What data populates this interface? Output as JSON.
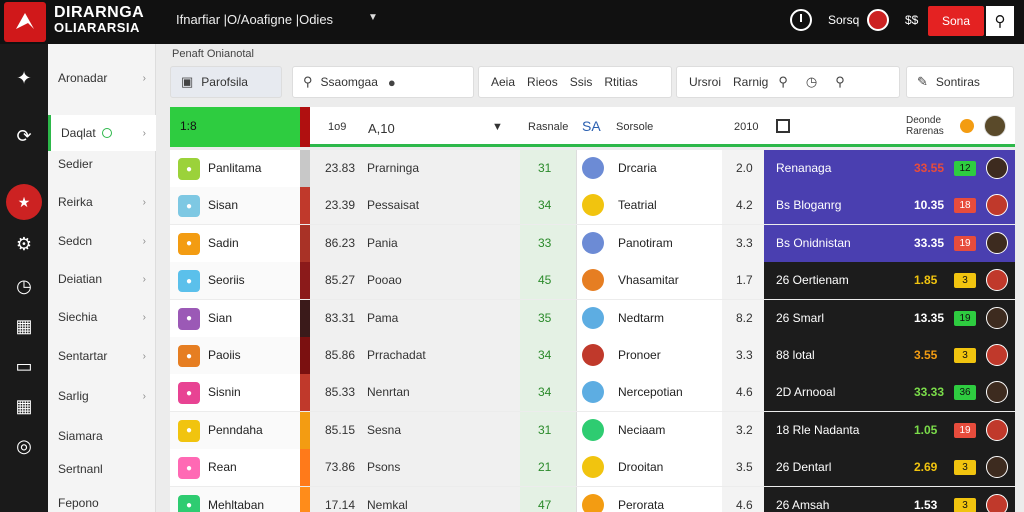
{
  "app": {
    "brand_line1": "DIRARNGA",
    "brand_line2": "OLIARARSIA",
    "nav_title": "Ifnarfiar |O/Aoafigne |Odies",
    "clock_label": "Sorsq",
    "money_label": "$$",
    "cta_label": "Sona"
  },
  "sidebar": {
    "items": [
      {
        "label": "Aronadar",
        "arrow": "›"
      },
      {
        "label": "Daqlat",
        "arrow": "›"
      },
      {
        "label": "Sedier",
        "arrow": ""
      },
      {
        "label": "Reirka",
        "arrow": "›"
      },
      {
        "label": "Sedcn",
        "arrow": "›"
      },
      {
        "label": "Deiatian",
        "arrow": "›"
      },
      {
        "label": "Siechia",
        "arrow": "›"
      },
      {
        "label": "Sentartar",
        "arrow": "›"
      },
      {
        "label": "Sarlig",
        "arrow": "›"
      },
      {
        "label": "Siamara",
        "arrow": ""
      },
      {
        "label": "Sertnanl",
        "arrow": ""
      },
      {
        "label": "Fepono",
        "arrow": ""
      }
    ]
  },
  "breadcrumb": "Penaft Onianotal",
  "toolbar": {
    "t1": "Parofsila",
    "search_value": "Ssaomgaa",
    "t3a": "Aeia",
    "t3b": "Rieos",
    "t3c": "Ssis",
    "t3d": "Rtitias",
    "t4a": "Ursroi",
    "t4b": "Rarnig",
    "t5": "Sontiras"
  },
  "header": {
    "green": "1:8",
    "c1": "1o9",
    "c2": "A,10",
    "c3": "Rasnale",
    "c4": "SA",
    "c5": "Sorsole",
    "c6": "2010",
    "c7": "Deonde\nRarenas"
  },
  "colors": {
    "accent_green": "#2ecc40",
    "brand_red": "#d0181a",
    "panel_purple": "#4a3fb0",
    "panel_dark": "#1c1c1c"
  },
  "rows": [
    {
      "name": "Panlitama",
      "num": "23.83",
      "mid": "Prarninga",
      "score": "31",
      "right_name": "Drcaria",
      "small": "2.0",
      "panel_label": "Renanaga",
      "odds": "33.55",
      "badge": "12"
    },
    {
      "name": "Sisan",
      "num": "23.39",
      "mid": "Pessaisat",
      "score": "34",
      "right_name": "Teatrial",
      "small": "4.2",
      "panel_label": "Bs Bloganrg",
      "odds": "10.35",
      "badge": "18"
    },
    {
      "name": "Sadin",
      "num": "86.23",
      "mid": "Pania",
      "score": "33",
      "right_name": "Panotiram",
      "small": "3.3",
      "panel_label": "Bs Onidnistan",
      "odds": "33.35",
      "badge": "19"
    },
    {
      "name": "Seoriis",
      "num": "85.27",
      "mid": "Pooao",
      "score": "45",
      "right_name": "Vhasamitar",
      "small": "1.7",
      "panel_label": "26 Oertienam",
      "odds": "1.85",
      "badge": "3"
    },
    {
      "name": "Sian",
      "num": "83.31",
      "mid": "Pama",
      "score": "35",
      "right_name": "Nedtarm",
      "small": "8.2",
      "panel_label": "26 Smarl",
      "odds": "13.35",
      "badge": "19"
    },
    {
      "name": "Paoiis",
      "num": "85.86",
      "mid": "Prrachadat",
      "score": "34",
      "right_name": "Pronoer",
      "small": "3.3",
      "panel_label": "88 lotal",
      "odds": "3.55",
      "badge": "3"
    },
    {
      "name": "Sisnin",
      "num": "85.33",
      "mid": "Nenrtan",
      "score": "34",
      "right_name": "Nercepotian",
      "small": "4.6",
      "panel_label": "2D Arnooal",
      "odds": "33.33",
      "badge": "36"
    },
    {
      "name": "Penndaha",
      "num": "85.15",
      "mid": "Sesna",
      "score": "31",
      "right_name": "Neciaam",
      "small": "3.2",
      "panel_label": "18 Rle Nadanta",
      "odds": "1.05",
      "badge": "19"
    },
    {
      "name": "Rean",
      "num": "73.86",
      "mid": "Psons",
      "score": "21",
      "right_name": "Drooitan",
      "small": "3.5",
      "panel_label": "26 Dentarl",
      "odds": "2.69",
      "badge": "3"
    },
    {
      "name": "Mehltaban",
      "num": "17.14",
      "mid": "Nemkal",
      "score": "47",
      "right_name": "Perorata",
      "small": "4.6",
      "panel_label": "26 Amsah",
      "odds": "1.53",
      "badge": "3"
    }
  ]
}
